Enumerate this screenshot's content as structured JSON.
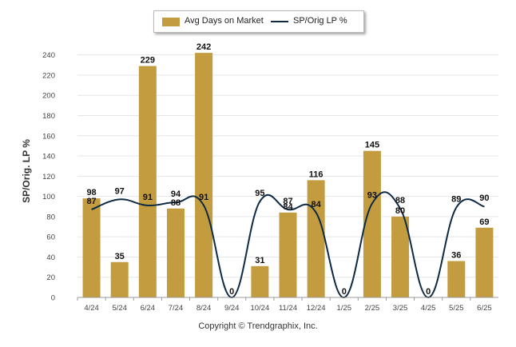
{
  "legend": {
    "bar_label": "Avg Days on Market",
    "line_label": "SP/Orig LP %"
  },
  "copyright": "Copyright © Trendgraphix, Inc.",
  "colors": {
    "bar": "#c39c3f",
    "line": "#0e2a45",
    "grid": "#e6e6e6",
    "axis": "#999999"
  },
  "chart_data": {
    "type": "bar",
    "ylabel": "SP/Orig. LP %",
    "ylim": [
      0,
      250
    ],
    "yticks": [
      0,
      20,
      40,
      60,
      80,
      100,
      120,
      140,
      160,
      180,
      200,
      220,
      240
    ],
    "categories": [
      "4/24",
      "5/24",
      "6/24",
      "7/24",
      "8/24",
      "9/24",
      "10/24",
      "11/24",
      "12/24",
      "1/25",
      "2/25",
      "3/25",
      "4/25",
      "5/25",
      "6/25"
    ],
    "series": [
      {
        "name": "Avg Days on Market",
        "type": "bar",
        "values": [
          98,
          35,
          229,
          88,
          242,
          0,
          31,
          84,
          116,
          0,
          145,
          80,
          0,
          36,
          69
        ]
      },
      {
        "name": "SP/Orig LP %",
        "type": "line",
        "values": [
          87,
          97,
          91,
          94,
          91,
          0,
          95,
          87,
          84,
          0,
          93,
          88,
          0,
          89,
          90
        ]
      }
    ]
  }
}
